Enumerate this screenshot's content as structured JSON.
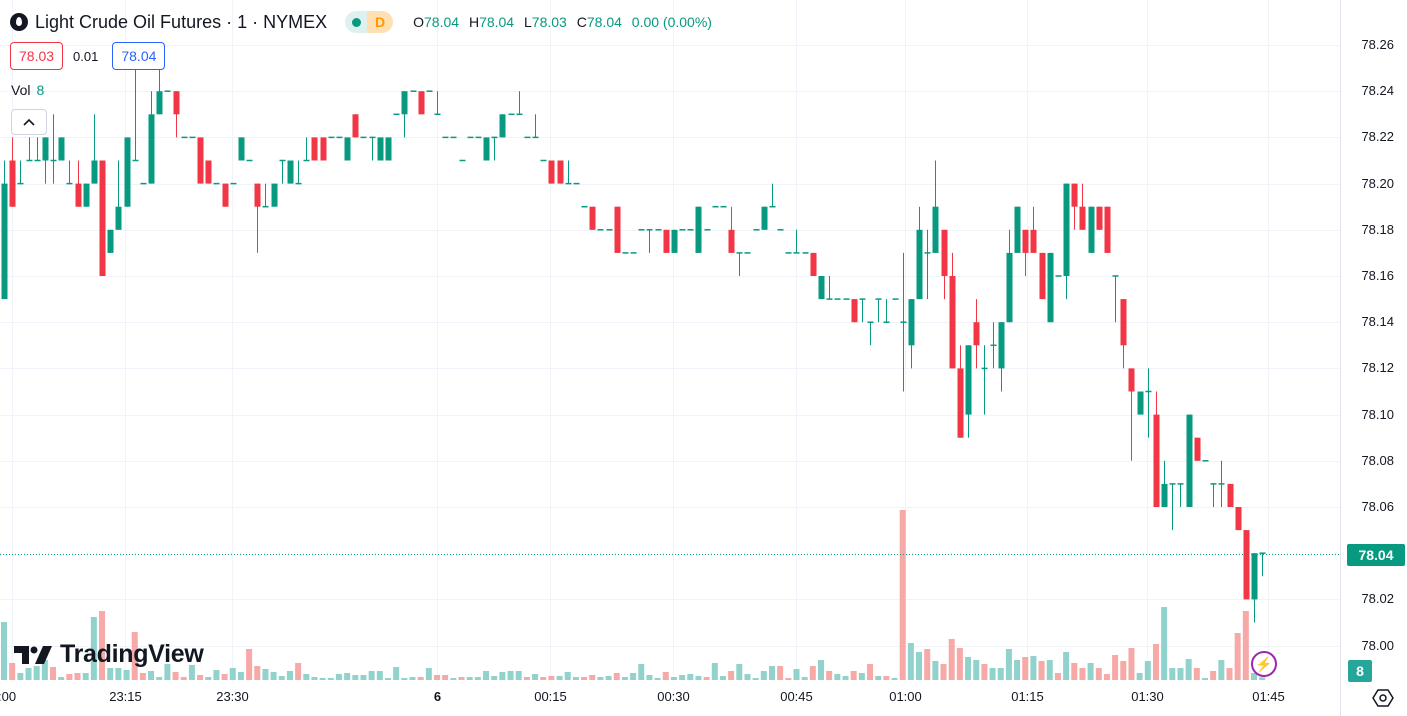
{
  "header": {
    "symbol_title": "Light Crude Oil Futures · 1 · NYMEX",
    "market_status": "D",
    "ohlc": {
      "o_label": "O",
      "o": "78.04",
      "h_label": "H",
      "h": "78.04",
      "l_label": "L",
      "l": "78.03",
      "c_label": "C",
      "c": "78.04",
      "change": "0.00 (0.00%)"
    },
    "bid": "78.03",
    "spread": "0.01",
    "ask": "78.04",
    "volume_label": "Vol",
    "volume_value": "8"
  },
  "watermark": "TradingView",
  "last_price_label": "78.04",
  "last_volume_label": "8",
  "colors": {
    "up": "#089981",
    "down": "#F23645",
    "vol_up": "#92D2CC",
    "vol_down": "#F7A9A7",
    "bid": "#F23645",
    "ask": "#2962FF"
  },
  "chart_data": {
    "type": "candlestick",
    "title": "Light Crude Oil Futures · 1 · NYMEX",
    "ylim": [
      77.99,
      78.27
    ],
    "y_ticks": [
      "78.26",
      "78.24",
      "78.22",
      "78.20",
      "78.18",
      "78.16",
      "78.14",
      "78.12",
      "78.10",
      "78.08",
      "78.06",
      "78.02",
      "78.00"
    ],
    "x_ticks": [
      {
        "label": ":00",
        "index": 1
      },
      {
        "label": "23:15",
        "index": 14.8
      },
      {
        "label": "23:30",
        "index": 27.9
      },
      {
        "label": "6",
        "index": 53,
        "bold": true
      },
      {
        "label": "00:15",
        "index": 66.8
      },
      {
        "label": "00:30",
        "index": 81.9
      },
      {
        "label": "00:45",
        "index": 97
      },
      {
        "label": "01:00",
        "index": 110.3
      },
      {
        "label": "01:15",
        "index": 125.2
      },
      {
        "label": "01:30",
        "index": 139.9
      },
      {
        "label": "01:45",
        "index": 154.7
      }
    ],
    "ohlc_fields": [
      "open",
      "high",
      "low",
      "close"
    ],
    "candles": [
      [
        78.15,
        78.21,
        78.15,
        78.2
      ],
      [
        78.21,
        78.22,
        78.19,
        78.19
      ],
      [
        78.2,
        78.21,
        78.2,
        78.2
      ],
      [
        78.21,
        78.22,
        78.21,
        78.21
      ],
      [
        78.21,
        78.22,
        78.21,
        78.21
      ],
      [
        78.21,
        78.22,
        78.2,
        78.22
      ],
      [
        78.21,
        78.23,
        78.2,
        78.21
      ],
      [
        78.21,
        78.22,
        78.21,
        78.22
      ],
      [
        78.2,
        78.21,
        78.2,
        78.2
      ],
      [
        78.2,
        78.21,
        78.19,
        78.19
      ],
      [
        78.19,
        78.2,
        78.19,
        78.2
      ],
      [
        78.2,
        78.23,
        78.2,
        78.21
      ],
      [
        78.21,
        78.21,
        78.16,
        78.16
      ],
      [
        78.17,
        78.18,
        78.17,
        78.18
      ],
      [
        78.18,
        78.21,
        78.18,
        78.19
      ],
      [
        78.19,
        78.22,
        78.19,
        78.22
      ],
      [
        78.21,
        78.25,
        78.21,
        78.21
      ],
      [
        78.2,
        78.2,
        78.2,
        78.2
      ],
      [
        78.2,
        78.24,
        78.2,
        78.23
      ],
      [
        78.23,
        78.25,
        78.23,
        78.24
      ],
      [
        78.24,
        78.24,
        78.24,
        78.24
      ],
      [
        78.24,
        78.24,
        78.22,
        78.23
      ],
      [
        78.22,
        78.22,
        78.22,
        78.22
      ],
      [
        78.22,
        78.22,
        78.22,
        78.22
      ],
      [
        78.22,
        78.22,
        78.2,
        78.2
      ],
      [
        78.21,
        78.21,
        78.2,
        78.2
      ],
      [
        78.2,
        78.2,
        78.2,
        78.2
      ],
      [
        78.2,
        78.2,
        78.19,
        78.19
      ],
      [
        78.2,
        78.2,
        78.2,
        78.2
      ],
      [
        78.21,
        78.22,
        78.21,
        78.22
      ],
      [
        78.21,
        78.21,
        78.21,
        78.21
      ],
      [
        78.2,
        78.2,
        78.17,
        78.19
      ],
      [
        78.19,
        78.2,
        78.19,
        78.19
      ],
      [
        78.19,
        78.2,
        78.19,
        78.2
      ],
      [
        78.21,
        78.21,
        78.2,
        78.21
      ],
      [
        78.2,
        78.21,
        78.2,
        78.21
      ],
      [
        78.2,
        78.21,
        78.2,
        78.2
      ],
      [
        78.21,
        78.22,
        78.21,
        78.21
      ],
      [
        78.22,
        78.22,
        78.21,
        78.21
      ],
      [
        78.22,
        78.22,
        78.21,
        78.21
      ],
      [
        78.22,
        78.22,
        78.22,
        78.22
      ],
      [
        78.22,
        78.22,
        78.22,
        78.22
      ],
      [
        78.21,
        78.22,
        78.21,
        78.22
      ],
      [
        78.23,
        78.23,
        78.22,
        78.22
      ],
      [
        78.22,
        78.22,
        78.22,
        78.22
      ],
      [
        78.22,
        78.22,
        78.21,
        78.22
      ],
      [
        78.21,
        78.22,
        78.21,
        78.22
      ],
      [
        78.21,
        78.22,
        78.21,
        78.22
      ],
      [
        78.23,
        78.23,
        78.23,
        78.23
      ],
      [
        78.23,
        78.24,
        78.22,
        78.24
      ],
      [
        78.24,
        78.24,
        78.24,
        78.24
      ],
      [
        78.24,
        78.24,
        78.23,
        78.23
      ],
      [
        78.24,
        78.24,
        78.24,
        78.24
      ],
      [
        78.23,
        78.24,
        78.23,
        78.23
      ],
      [
        78.22,
        78.22,
        78.22,
        78.22
      ],
      [
        78.22,
        78.22,
        78.22,
        78.22
      ],
      [
        78.21,
        78.21,
        78.21,
        78.21
      ],
      [
        78.22,
        78.22,
        78.22,
        78.22
      ],
      [
        78.22,
        78.22,
        78.22,
        78.22
      ],
      [
        78.21,
        78.22,
        78.21,
        78.22
      ],
      [
        78.22,
        78.22,
        78.21,
        78.22
      ],
      [
        78.22,
        78.23,
        78.22,
        78.23
      ],
      [
        78.23,
        78.23,
        78.23,
        78.23
      ],
      [
        78.23,
        78.24,
        78.23,
        78.23
      ],
      [
        78.22,
        78.22,
        78.22,
        78.22
      ],
      [
        78.22,
        78.23,
        78.22,
        78.22
      ],
      [
        78.21,
        78.21,
        78.21,
        78.21
      ],
      [
        78.21,
        78.21,
        78.2,
        78.2
      ],
      [
        78.21,
        78.21,
        78.2,
        78.2
      ],
      [
        78.2,
        78.21,
        78.2,
        78.2
      ],
      [
        78.2,
        78.2,
        78.2,
        78.2
      ],
      [
        78.19,
        78.19,
        78.19,
        78.19
      ],
      [
        78.19,
        78.19,
        78.18,
        78.18
      ],
      [
        78.18,
        78.18,
        78.18,
        78.18
      ],
      [
        78.18,
        78.18,
        78.18,
        78.18
      ],
      [
        78.19,
        78.19,
        78.17,
        78.17
      ],
      [
        78.17,
        78.17,
        78.17,
        78.17
      ],
      [
        78.17,
        78.17,
        78.17,
        78.17
      ],
      [
        78.18,
        78.18,
        78.18,
        78.18
      ],
      [
        78.18,
        78.18,
        78.17,
        78.18
      ],
      [
        78.18,
        78.18,
        78.18,
        78.18
      ],
      [
        78.18,
        78.18,
        78.17,
        78.17
      ],
      [
        78.17,
        78.18,
        78.17,
        78.18
      ],
      [
        78.18,
        78.18,
        78.18,
        78.18
      ],
      [
        78.18,
        78.18,
        78.18,
        78.18
      ],
      [
        78.17,
        78.19,
        78.17,
        78.19
      ],
      [
        78.18,
        78.18,
        78.18,
        78.18
      ],
      [
        78.19,
        78.19,
        78.19,
        78.19
      ],
      [
        78.19,
        78.19,
        78.19,
        78.19
      ],
      [
        78.18,
        78.19,
        78.17,
        78.17
      ],
      [
        78.17,
        78.17,
        78.16,
        78.17
      ],
      [
        78.17,
        78.17,
        78.17,
        78.17
      ],
      [
        78.18,
        78.18,
        78.18,
        78.18
      ],
      [
        78.18,
        78.19,
        78.18,
        78.19
      ],
      [
        78.19,
        78.2,
        78.19,
        78.19
      ],
      [
        78.18,
        78.18,
        78.18,
        78.18
      ],
      [
        78.17,
        78.17,
        78.17,
        78.17
      ],
      [
        78.17,
        78.18,
        78.17,
        78.17
      ],
      [
        78.17,
        78.17,
        78.17,
        78.17
      ],
      [
        78.17,
        78.17,
        78.16,
        78.16
      ],
      [
        78.15,
        78.16,
        78.15,
        78.16
      ],
      [
        78.15,
        78.16,
        78.15,
        78.15
      ],
      [
        78.15,
        78.15,
        78.15,
        78.15
      ],
      [
        78.15,
        78.15,
        78.15,
        78.15
      ],
      [
        78.15,
        78.15,
        78.14,
        78.14
      ],
      [
        78.15,
        78.15,
        78.14,
        78.15
      ],
      [
        78.14,
        78.14,
        78.13,
        78.14
      ],
      [
        78.15,
        78.15,
        78.14,
        78.15
      ],
      [
        78.14,
        78.15,
        78.14,
        78.14
      ],
      [
        78.15,
        78.15,
        78.15,
        78.15
      ],
      [
        78.14,
        78.17,
        78.11,
        78.14
      ],
      [
        78.13,
        78.15,
        78.12,
        78.15
      ],
      [
        78.15,
        78.19,
        78.15,
        78.18
      ],
      [
        78.17,
        78.18,
        78.15,
        78.17
      ],
      [
        78.17,
        78.21,
        78.17,
        78.19
      ],
      [
        78.18,
        78.18,
        78.15,
        78.16
      ],
      [
        78.16,
        78.17,
        78.12,
        78.12
      ],
      [
        78.12,
        78.13,
        78.09,
        78.09
      ],
      [
        78.1,
        78.13,
        78.09,
        78.13
      ],
      [
        78.14,
        78.15,
        78.12,
        78.13
      ],
      [
        78.12,
        78.13,
        78.1,
        78.12
      ],
      [
        78.13,
        78.14,
        78.12,
        78.13
      ],
      [
        78.12,
        78.14,
        78.11,
        78.14
      ],
      [
        78.14,
        78.18,
        78.14,
        78.17
      ],
      [
        78.17,
        78.19,
        78.17,
        78.19
      ],
      [
        78.18,
        78.18,
        78.16,
        78.17
      ],
      [
        78.18,
        78.19,
        78.17,
        78.17
      ],
      [
        78.17,
        78.17,
        78.15,
        78.15
      ],
      [
        78.14,
        78.17,
        78.14,
        78.17
      ],
      [
        78.16,
        78.16,
        78.16,
        78.16
      ],
      [
        78.16,
        78.2,
        78.15,
        78.2
      ],
      [
        78.2,
        78.2,
        78.18,
        78.19
      ],
      [
        78.19,
        78.2,
        78.18,
        78.18
      ],
      [
        78.17,
        78.19,
        78.17,
        78.19
      ],
      [
        78.19,
        78.19,
        78.18,
        78.18
      ],
      [
        78.19,
        78.19,
        78.17,
        78.17
      ],
      [
        78.16,
        78.16,
        78.14,
        78.16
      ],
      [
        78.15,
        78.15,
        78.12,
        78.13
      ],
      [
        78.12,
        78.12,
        78.08,
        78.11
      ],
      [
        78.1,
        78.11,
        78.1,
        78.11
      ],
      [
        78.11,
        78.12,
        78.09,
        78.11
      ],
      [
        78.1,
        78.11,
        78.06,
        78.06
      ],
      [
        78.06,
        78.08,
        78.06,
        78.07
      ],
      [
        78.07,
        78.07,
        78.05,
        78.07
      ],
      [
        78.07,
        78.07,
        78.06,
        78.07
      ],
      [
        78.06,
        78.1,
        78.06,
        78.1
      ],
      [
        78.09,
        78.09,
        78.08,
        78.08
      ],
      [
        78.08,
        78.08,
        78.08,
        78.08
      ],
      [
        78.07,
        78.07,
        78.06,
        78.07
      ],
      [
        78.07,
        78.08,
        78.06,
        78.07
      ],
      [
        78.07,
        78.07,
        78.06,
        78.06
      ],
      [
        78.06,
        78.06,
        78.05,
        78.05
      ],
      [
        78.05,
        78.05,
        78.02,
        78.02
      ],
      [
        78.02,
        78.04,
        78.01,
        78.04
      ],
      [
        78.04,
        78.04,
        78.03,
        78.04
      ]
    ],
    "volume": [
      174,
      51,
      21,
      36,
      42,
      60,
      39,
      9,
      18,
      21,
      21,
      189,
      207,
      36,
      36,
      30,
      144,
      21,
      27,
      9,
      48,
      24,
      9,
      45,
      15,
      9,
      30,
      18,
      36,
      24,
      93,
      42,
      33,
      24,
      12,
      27,
      51,
      18,
      9,
      6,
      6,
      18,
      21,
      15,
      15,
      27,
      27,
      6,
      39,
      6,
      9,
      9,
      36,
      15,
      15,
      6,
      9,
      9,
      9,
      27,
      12,
      24,
      27,
      27,
      9,
      18,
      9,
      12,
      12,
      24,
      9,
      9,
      15,
      9,
      12,
      21,
      9,
      21,
      48,
      15,
      6,
      24,
      9,
      15,
      18,
      12,
      9,
      51,
      12,
      27,
      48,
      18,
      6,
      27,
      42,
      42,
      6,
      33,
      9,
      42,
      60,
      27,
      18,
      12,
      27,
      21,
      48,
      12,
      12,
      6,
      510,
      111,
      84,
      93,
      57,
      48,
      123,
      96,
      69,
      60,
      48,
      36,
      36,
      93,
      60,
      69,
      72,
      57,
      60,
      21,
      84,
      51,
      36,
      51,
      36,
      18,
      75,
      57,
      96,
      21,
      57,
      108,
      219,
      36,
      36,
      63,
      36,
      6,
      27,
      60,
      36,
      141,
      207,
      21,
      8
    ],
    "last_price": 78.04,
    "grid": true
  }
}
